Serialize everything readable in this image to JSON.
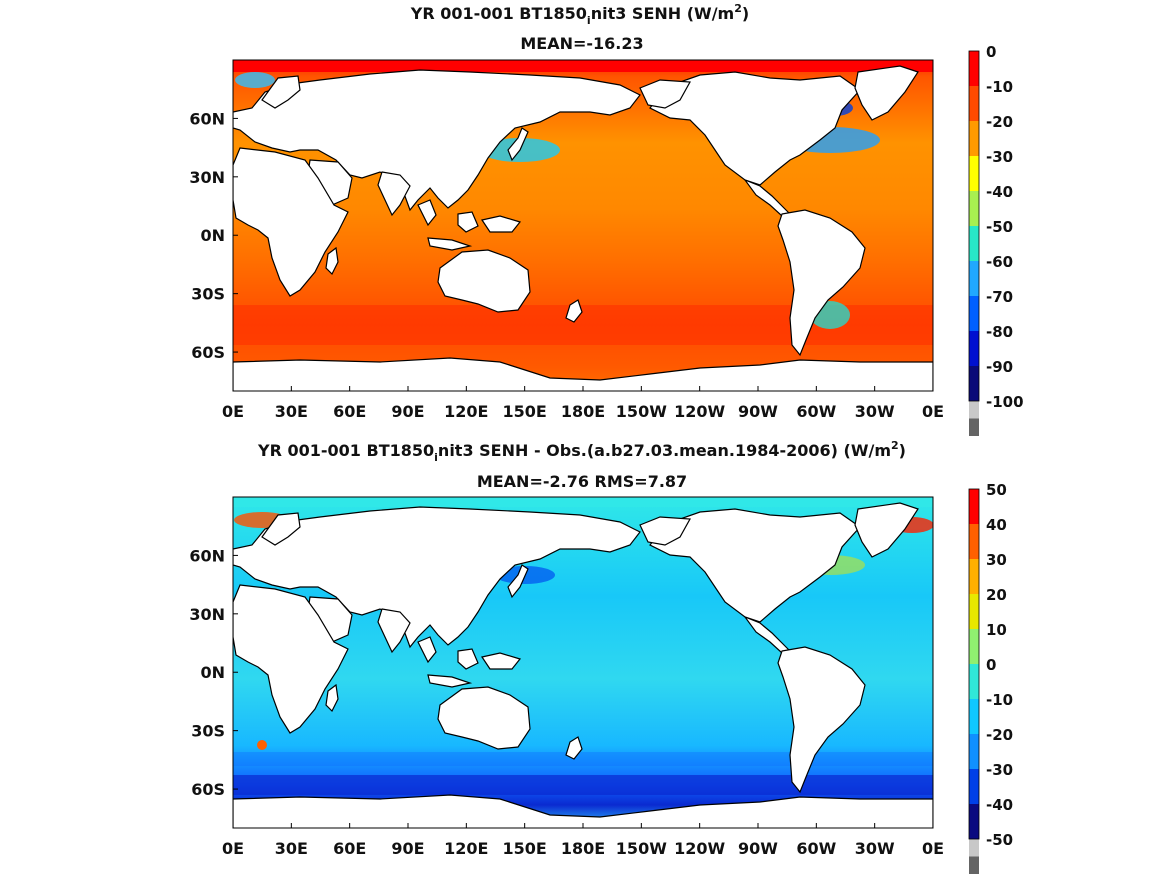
{
  "chart_data": [
    {
      "type": "heatmap",
      "title_parts": [
        "YR 001-001 BT1850",
        "i",
        "nit3  SENH (W/m",
        "2",
        ")"
      ],
      "subtitle": "MEAN=-16.23",
      "x_ticks": [
        "0E",
        "30E",
        "60E",
        "90E",
        "120E",
        "150E",
        "180E",
        "150W",
        "120W",
        "90W",
        "60W",
        "30W",
        "0E"
      ],
      "y_ticks": [
        {
          "label": "60N",
          "lat": 60
        },
        {
          "label": "30N",
          "lat": 30
        },
        {
          "label": "0N",
          "lat": 0
        },
        {
          "label": "30S",
          "lat": -30
        },
        {
          "label": "60S",
          "lat": -60
        }
      ],
      "lon_range": [
        0,
        360
      ],
      "lat_range": [
        -80,
        90
      ],
      "colorbar": {
        "labels": [
          "0",
          "-10",
          "-20",
          "-30",
          "-40",
          "-50",
          "-60",
          "-70",
          "-80",
          "-90",
          "-100"
        ],
        "colors": [
          "#ff0000",
          "#ff4a00",
          "#ff9a00",
          "#ffff00",
          "#a8f050",
          "#28e8c8",
          "#20a8ff",
          "#0060ff",
          "#0010d0",
          "#0a0a78",
          "#c8c8c8",
          "#646464"
        ]
      },
      "mean": -16.23
    },
    {
      "type": "heatmap",
      "title_parts": [
        "YR 001-001 BT1850",
        "i",
        "nit3 SENH - Obs.(a.b27.03.mean.1984-2006) (W/m",
        "2",
        ")"
      ],
      "subtitle": "MEAN=-2.76 RMS=7.87",
      "x_ticks": [
        "0E",
        "30E",
        "60E",
        "90E",
        "120E",
        "150E",
        "180E",
        "150W",
        "120W",
        "90W",
        "60W",
        "30W",
        "0E"
      ],
      "y_ticks": [
        {
          "label": "60N",
          "lat": 60
        },
        {
          "label": "30N",
          "lat": 30
        },
        {
          "label": "0N",
          "lat": 0
        },
        {
          "label": "30S",
          "lat": -30
        },
        {
          "label": "60S",
          "lat": -60
        }
      ],
      "lon_range": [
        0,
        360
      ],
      "lat_range": [
        -80,
        90
      ],
      "colorbar": {
        "labels": [
          "50",
          "40",
          "30",
          "20",
          "10",
          "0",
          "-10",
          "-20",
          "-30",
          "-40",
          "-50"
        ],
        "colors": [
          "#ff0000",
          "#ff6000",
          "#ffb000",
          "#e8e800",
          "#90f070",
          "#30e8d8",
          "#10c8ff",
          "#1090ff",
          "#0040e8",
          "#0a0a80",
          "#c8c8c8",
          "#646464"
        ]
      },
      "mean": -2.76,
      "rms": 7.87
    }
  ]
}
